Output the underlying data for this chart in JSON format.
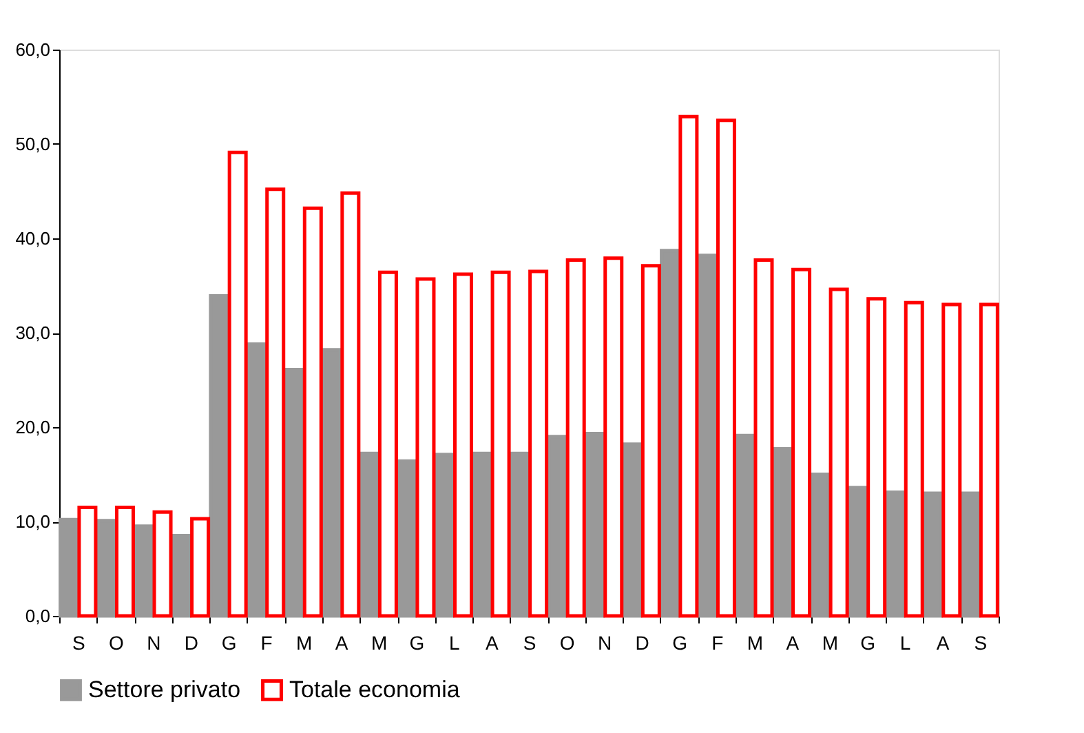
{
  "chart_data": {
    "type": "bar",
    "categories": [
      "S",
      "O",
      "N",
      "D",
      "G",
      "F",
      "M",
      "A",
      "M",
      "G",
      "L",
      "A",
      "S",
      "O",
      "N",
      "D",
      "G",
      "F",
      "M",
      "A",
      "M",
      "G",
      "L",
      "A",
      "S"
    ],
    "series": [
      {
        "name": "Settore privato",
        "color": "#999999",
        "values": [
          10.2,
          10.1,
          9.5,
          8.5,
          33.9,
          28.8,
          26.1,
          28.2,
          17.2,
          16.4,
          17.1,
          17.2,
          17.2,
          19.0,
          19.3,
          18.2,
          38.7,
          38.2,
          19.1,
          17.7,
          15.0,
          13.6,
          13.1,
          13.0,
          13.0
        ]
      },
      {
        "name": "Totale economia",
        "color": "#ff0000",
        "values": [
          11.5,
          11.5,
          11.0,
          10.3,
          49.1,
          45.2,
          43.2,
          44.8,
          36.4,
          35.7,
          36.2,
          36.4,
          36.5,
          37.7,
          37.9,
          37.1,
          52.9,
          52.5,
          37.7,
          36.7,
          34.6,
          33.6,
          33.2,
          33.0,
          33.0
        ]
      }
    ],
    "ylim": [
      0,
      60
    ],
    "yticks": [
      {
        "value": 0,
        "label": "0,0"
      },
      {
        "value": 10,
        "label": "10,0"
      },
      {
        "value": 20,
        "label": "20,0"
      },
      {
        "value": 30,
        "label": "30,0"
      },
      {
        "value": 40,
        "label": "40,0"
      },
      {
        "value": 50,
        "label": "50,0"
      },
      {
        "value": 60,
        "label": "60,0"
      }
    ],
    "grid": false,
    "legend": "bottom"
  }
}
